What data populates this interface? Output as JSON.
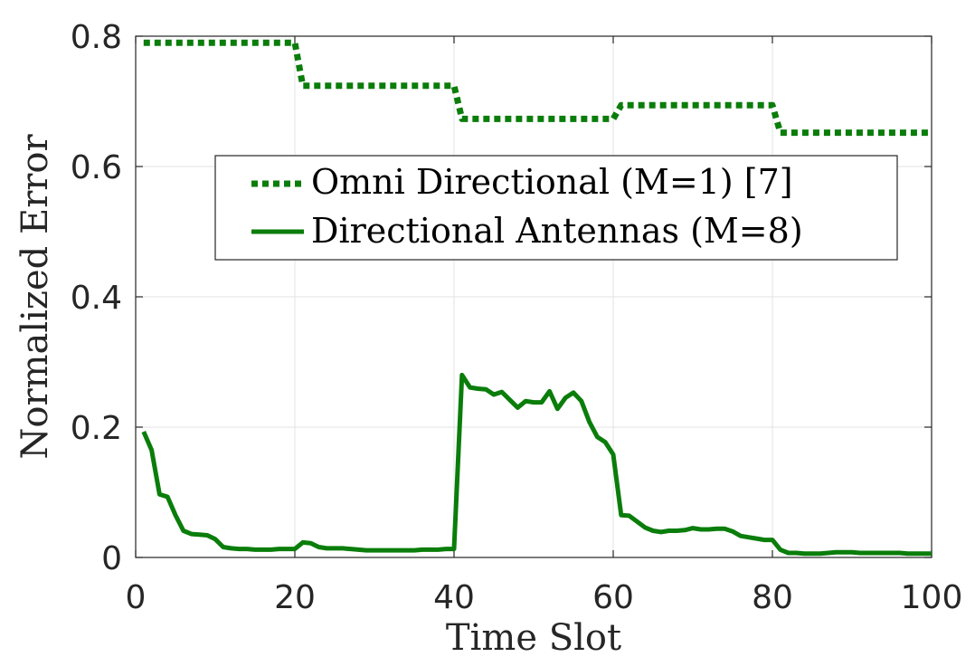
{
  "chart_data": {
    "type": "line",
    "title": "",
    "xlabel": "Time Slot",
    "ylabel": "Normalized Error",
    "xlim": [
      0,
      100
    ],
    "ylim": [
      0,
      0.8
    ],
    "xticks": [
      0,
      20,
      40,
      60,
      80,
      100
    ],
    "yticks": [
      0,
      0.2,
      0.4,
      0.6,
      0.8
    ],
    "xtick_labels": [
      "0",
      "20",
      "40",
      "60",
      "80",
      "100"
    ],
    "ytick_labels": [
      "0",
      "0.2",
      "0.4",
      "0.6",
      "0.8"
    ],
    "grid": true,
    "legend_position": "center-right",
    "series": [
      {
        "name": "Omni Directional (M=1) [7]",
        "style": "dotted",
        "color": "#0a7d0a",
        "x": [
          1,
          20,
          21,
          40,
          41,
          60,
          61,
          80,
          81,
          100
        ],
        "y": [
          0.79,
          0.79,
          0.724,
          0.724,
          0.673,
          0.673,
          0.694,
          0.694,
          0.652,
          0.652
        ]
      },
      {
        "name": "Directional Antennas (M=8)",
        "style": "solid",
        "color": "#0a7d0a",
        "x": [
          1,
          2,
          3,
          4,
          5,
          6,
          7,
          8,
          9,
          10,
          11,
          12,
          13,
          14,
          15,
          16,
          17,
          18,
          19,
          20,
          21,
          22,
          23,
          24,
          25,
          26,
          27,
          28,
          29,
          30,
          31,
          32,
          33,
          34,
          35,
          36,
          37,
          38,
          39,
          40,
          41,
          42,
          43,
          44,
          45,
          46,
          47,
          48,
          49,
          50,
          51,
          52,
          53,
          54,
          55,
          56,
          57,
          58,
          59,
          60,
          61,
          62,
          63,
          64,
          65,
          66,
          67,
          68,
          69,
          70,
          71,
          72,
          73,
          74,
          75,
          76,
          77,
          78,
          79,
          80,
          81,
          82,
          83,
          84,
          85,
          86,
          87,
          88,
          89,
          90,
          91,
          92,
          93,
          94,
          95,
          96,
          97,
          98,
          99,
          100
        ],
        "y": [
          0.193,
          0.165,
          0.097,
          0.093,
          0.065,
          0.041,
          0.036,
          0.035,
          0.034,
          0.028,
          0.016,
          0.014,
          0.013,
          0.013,
          0.012,
          0.012,
          0.012,
          0.013,
          0.013,
          0.013,
          0.023,
          0.022,
          0.016,
          0.014,
          0.014,
          0.014,
          0.013,
          0.012,
          0.011,
          0.011,
          0.011,
          0.011,
          0.011,
          0.011,
          0.011,
          0.012,
          0.012,
          0.012,
          0.013,
          0.013,
          0.28,
          0.261,
          0.259,
          0.258,
          0.25,
          0.254,
          0.242,
          0.23,
          0.24,
          0.238,
          0.238,
          0.255,
          0.228,
          0.245,
          0.253,
          0.24,
          0.208,
          0.185,
          0.177,
          0.158,
          0.065,
          0.064,
          0.055,
          0.046,
          0.041,
          0.039,
          0.041,
          0.041,
          0.042,
          0.045,
          0.043,
          0.043,
          0.044,
          0.044,
          0.04,
          0.033,
          0.031,
          0.029,
          0.027,
          0.027,
          0.012,
          0.007,
          0.007,
          0.006,
          0.006,
          0.006,
          0.007,
          0.008,
          0.008,
          0.008,
          0.007,
          0.007,
          0.007,
          0.007,
          0.007,
          0.007,
          0.006,
          0.006,
          0.006,
          0.006
        ]
      }
    ]
  }
}
